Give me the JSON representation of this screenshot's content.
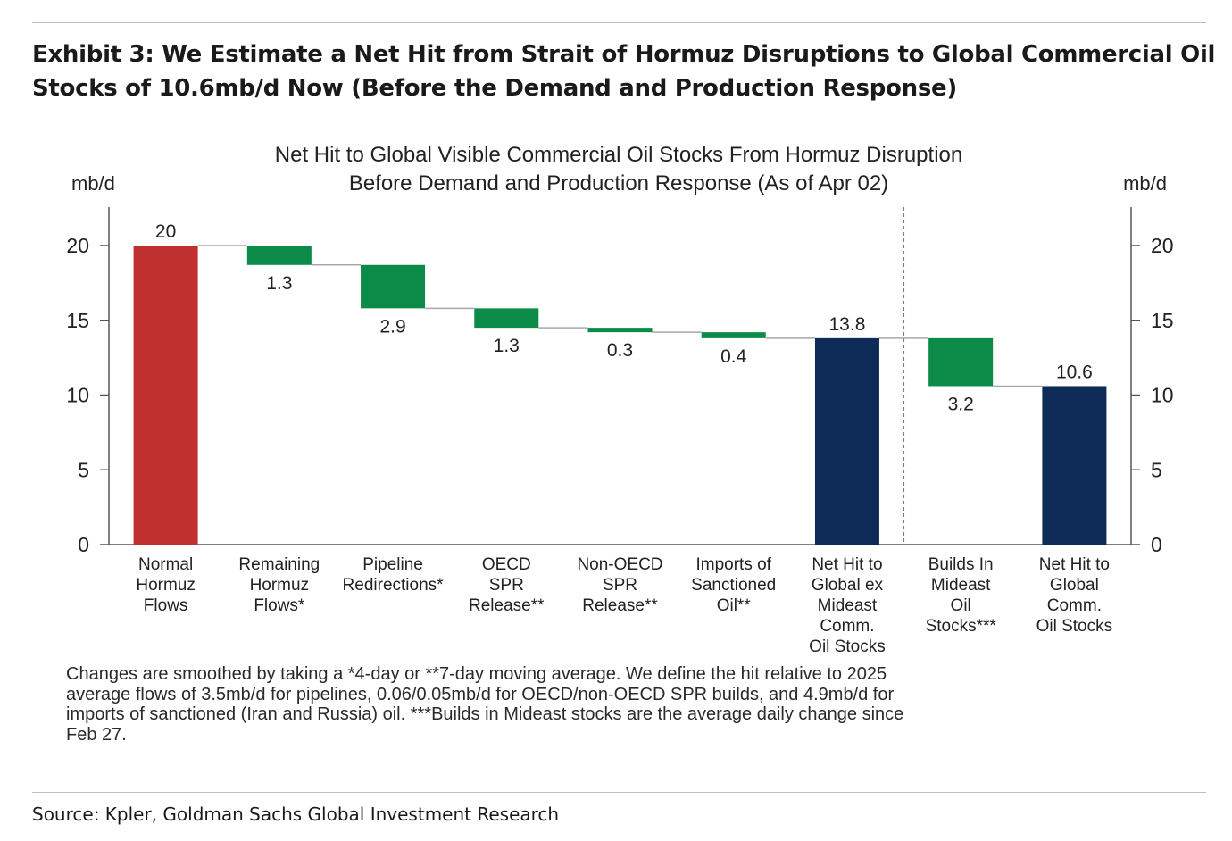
{
  "exhibit": {
    "title_line1": "Exhibit 3: We Estimate a Net Hit from Strait of Hormuz Disruptions to Global Commercial Oil",
    "title_line2": "Stocks of 10.6mb/d Now (Before the Demand and Production Response)"
  },
  "chart_data": {
    "type": "bar",
    "subtype": "waterfall",
    "title_line1": "Net Hit to Global Visible Commercial Oil Stocks From Hormuz Disruption",
    "title_line2": "Before Demand and Production Response (As of Apr 02)",
    "ylabel_left": "mb/d",
    "ylabel_right": "mb/d",
    "ylim": [
      0,
      22.5
    ],
    "yticks": [
      "0",
      "5",
      "10",
      "15",
      "20"
    ],
    "ytick_values": [
      0,
      5,
      10,
      15,
      20
    ],
    "colors": {
      "total_start": "#c0302e",
      "change": "#0c8a47",
      "total": "#0e2a56"
    },
    "categories": [
      {
        "label_lines": [
          "Normal",
          "Hormuz",
          "Flows"
        ],
        "kind": "total_start",
        "start": 0,
        "end": 20,
        "value_label": "20",
        "label_pos": "above"
      },
      {
        "label_lines": [
          "Remaining",
          "Hormuz",
          "Flows*"
        ],
        "kind": "change",
        "start": 20,
        "end": 18.7,
        "value_label": "1.3",
        "label_pos": "below"
      },
      {
        "label_lines": [
          "Pipeline",
          "Redirections*"
        ],
        "kind": "change",
        "start": 18.7,
        "end": 15.8,
        "value_label": "2.9",
        "label_pos": "below"
      },
      {
        "label_lines": [
          "OECD",
          "SPR",
          "Release**"
        ],
        "kind": "change",
        "start": 15.8,
        "end": 14.5,
        "value_label": "1.3",
        "label_pos": "below"
      },
      {
        "label_lines": [
          "Non-OECD",
          "SPR",
          "Release**"
        ],
        "kind": "change",
        "start": 14.5,
        "end": 14.2,
        "value_label": "0.3",
        "label_pos": "below"
      },
      {
        "label_lines": [
          "Imports of",
          "Sanctioned",
          "Oil**"
        ],
        "kind": "change",
        "start": 14.2,
        "end": 13.8,
        "value_label": "0.4",
        "label_pos": "below"
      },
      {
        "label_lines": [
          "Net Hit to",
          "Global ex",
          "Mideast",
          "Comm.",
          "Oil Stocks"
        ],
        "kind": "total",
        "start": 0,
        "end": 13.8,
        "value_label": "13.8",
        "label_pos": "above"
      },
      {
        "label_lines": [
          "Builds In",
          "Mideast",
          "Oil",
          "Stocks***"
        ],
        "kind": "change",
        "start": 13.8,
        "end": 10.6,
        "value_label": "3.2",
        "label_pos": "below"
      },
      {
        "label_lines": [
          "Net Hit to",
          "Global",
          "Comm.",
          "Oil Stocks"
        ],
        "kind": "total",
        "start": 0,
        "end": 10.6,
        "value_label": "10.6",
        "label_pos": "above"
      }
    ],
    "divider_after_index": 6
  },
  "footnote": {
    "line1": "Changes are smoothed by taking a *4-day or **7-day moving average. We define the hit relative to 2025",
    "line2": "average flows of 3.5mb/d for pipelines, 0.06/0.05mb/d for OECD/non-OECD SPR builds, and 4.9mb/d for",
    "line3": "imports of sanctioned (Iran and Russia) oil. ***Builds in Mideast stocks are the average daily change since",
    "line4": "Feb 27."
  },
  "source": "Source: Kpler, Goldman Sachs Global Investment Research"
}
